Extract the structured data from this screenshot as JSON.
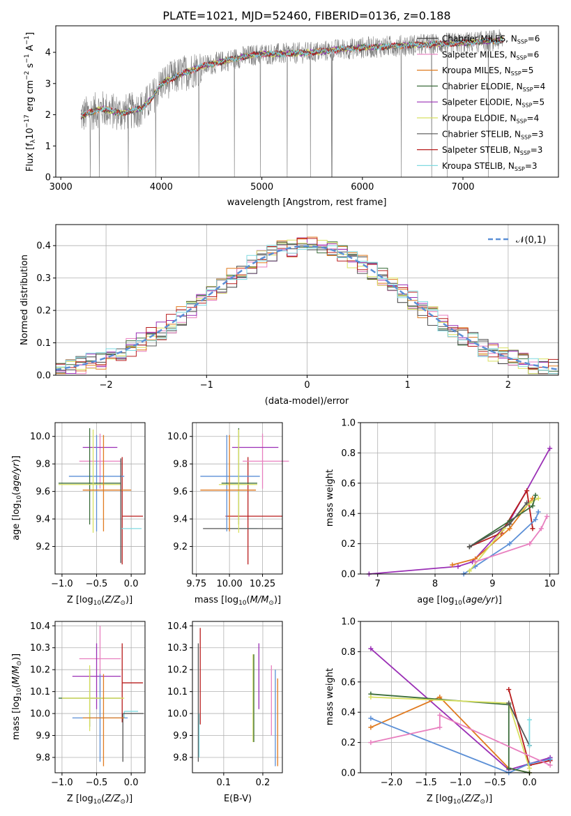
{
  "figure": {
    "title": "PLATE=1021, MJD=52460, FIBERID=0136, z=0.188"
  },
  "chart_data": [
    {
      "id": "spectrum",
      "type": "line",
      "xlabel": "wavelength [Angstrom, rest frame]",
      "ylabel": "Flux [f_λ 10^-17 erg cm^-2 s^-1 A^-1]",
      "xlim": [
        2950,
        7950
      ],
      "ylim": [
        0,
        4.85
      ],
      "xticks": [
        3000,
        4000,
        5000,
        6000,
        7000
      ],
      "yticks": [
        0,
        1,
        2,
        3,
        4
      ],
      "grid": false,
      "legend_position": "upper right",
      "data_x_range": [
        3200,
        7400
      ],
      "series": [
        {
          "name": "Chabrier MILES, N_SSP=6",
          "legend": {
            "pre": "Chabrier MILES, N",
            "sub": "SSP",
            "post": "=6"
          },
          "color": "#3e3e3e"
        },
        {
          "name": "Salpeter MILES, N_SSP=6",
          "legend": {
            "pre": "Salpeter MILES, N",
            "sub": "SSP",
            "post": "=6"
          },
          "color": "#e87fbf"
        },
        {
          "name": "Kroupa MILES, N_SSP=5",
          "legend": {
            "pre": "Kroupa MILES, N",
            "sub": "SSP",
            "post": "=5"
          },
          "color": "#e07a1f"
        },
        {
          "name": "Chabrier ELODIE, N_SSP=4",
          "legend": {
            "pre": "Chabrier ELODIE, N",
            "sub": "SSP",
            "post": "=4"
          },
          "color": "#3b6d3b"
        },
        {
          "name": "Salpeter ELODIE, N_SSP=5",
          "legend": {
            "pre": "Salpeter ELODIE, N",
            "sub": "SSP",
            "post": "=5"
          },
          "color": "#9a2fb5"
        },
        {
          "name": "Kroupa ELODIE, N_SSP=4",
          "legend": {
            "pre": "Kroupa ELODIE, N",
            "sub": "SSP",
            "post": "=4"
          },
          "color": "#d8e060"
        },
        {
          "name": "Chabrier STELIB, N_SSP=3",
          "legend": {
            "pre": "Chabrier STELIB, N",
            "sub": "SSP",
            "post": "=3"
          },
          "color": "#555555"
        },
        {
          "name": "Salpeter STELIB, N_SSP=3",
          "legend": {
            "pre": "Salpeter STELIB, N",
            "sub": "SSP",
            "post": "=3"
          },
          "color": "#b81c1c"
        },
        {
          "name": "Kroupa STELIB, N_SSP=3",
          "legend": {
            "pre": "Kroupa STELIB, N",
            "sub": "SSP",
            "post": "=3"
          },
          "color": "#7fd9e0"
        }
      ],
      "continuum_anchor_points": [
        [
          3200,
          1.95
        ],
        [
          3400,
          2.2
        ],
        [
          3600,
          2.05
        ],
        [
          3800,
          2.2
        ],
        [
          3900,
          2.5
        ],
        [
          4000,
          3.0
        ],
        [
          4200,
          3.3
        ],
        [
          4400,
          3.55
        ],
        [
          4600,
          3.7
        ],
        [
          4800,
          3.85
        ],
        [
          5000,
          3.95
        ],
        [
          5200,
          3.95
        ],
        [
          5500,
          4.0
        ],
        [
          5800,
          4.1
        ],
        [
          6000,
          4.15
        ],
        [
          6300,
          4.2
        ],
        [
          6600,
          4.25
        ],
        [
          7000,
          4.3
        ],
        [
          7400,
          4.4
        ]
      ]
    },
    {
      "id": "residuals",
      "type": "histogram",
      "xlabel": "(data-model)/error",
      "ylabel": "Normed distribution",
      "xlim": [
        -2.5,
        2.5
      ],
      "ylim": [
        0,
        0.465
      ],
      "xticks": [
        -2,
        -1,
        0,
        1,
        2
      ],
      "yticks": [
        0.0,
        0.1,
        0.2,
        0.3,
        0.4
      ],
      "grid": true,
      "bin_width": 0.1,
      "reference_curve": {
        "label": "𝒩(0,1)",
        "mean": 0,
        "sigma": 1,
        "color": "#5b8fd6",
        "style": "dashed"
      },
      "legend_position": "upper right"
    },
    {
      "id": "age_vs_Z",
      "type": "errorbar",
      "xlabel": "Z [log10(Z/Z⊙)]",
      "ylabel": "age [log10(age/yr)]",
      "xlim": [
        -1.1,
        0.2
      ],
      "ylim": [
        9.0,
        10.1
      ],
      "xticks": [
        -1.0,
        -0.5,
        0.0
      ],
      "yticks": [
        9.2,
        9.4,
        9.6,
        9.8,
        10.0
      ],
      "grid": true,
      "points": [
        {
          "color": "#b81c1c",
          "x": -0.13,
          "xerr": [
            0.0,
            0.3
          ],
          "y": 9.42,
          "yerr": [
            0.35,
            0.43
          ]
        },
        {
          "color": "#7fd9e0",
          "x": 0.0,
          "xerr": [
            0.15,
            0.15
          ],
          "y": 9.33,
          "yerr": [
            0.0,
            0.0
          ]
        },
        {
          "color": "#e87fbf",
          "x": -0.45,
          "xerr": [
            0.3,
            0.3
          ],
          "y": 9.82,
          "yerr": [
            0.2,
            0.2
          ]
        },
        {
          "color": "#9a2fb5",
          "x": -0.4,
          "xerr": [
            0.3,
            0.2
          ],
          "y": 9.92,
          "yerr": [
            0.0,
            0.0
          ]
        },
        {
          "color": "#5b8fd6",
          "x": -0.5,
          "xerr": [
            0.4,
            0.4
          ],
          "y": 9.71,
          "yerr": [
            0.4,
            0.3
          ]
        },
        {
          "color": "#3b6d3b",
          "x": -0.6,
          "xerr": [
            0.45,
            0.45
          ],
          "y": 9.66,
          "yerr": [
            0.3,
            0.4
          ]
        },
        {
          "color": "#d8e060",
          "x": -0.55,
          "xerr": [
            0.5,
            0.4
          ],
          "y": 9.65,
          "yerr": [
            0.35,
            0.4
          ]
        },
        {
          "color": "#e07a1f",
          "x": -0.4,
          "xerr": [
            0.3,
            0.4
          ],
          "y": 9.61,
          "yerr": [
            0.3,
            0.4
          ]
        },
        {
          "color": "#555555",
          "x": -0.15,
          "xerr": [
            0.0,
            0.0
          ],
          "y": 9.46,
          "yerr": [
            0.38,
            0.38
          ]
        }
      ]
    },
    {
      "id": "age_vs_mass",
      "type": "errorbar",
      "xlabel": "mass [log10(M/M⊙)]",
      "ylabel": "",
      "xlim": [
        9.72,
        10.4
      ],
      "ylim": [
        9.0,
        10.1
      ],
      "xticks": [
        9.75,
        10.0,
        10.25
      ],
      "yticks": [
        9.2,
        9.4,
        9.6,
        9.8,
        10.0
      ],
      "grid": true,
      "points": [
        {
          "color": "#b81c1c",
          "x": 10.14,
          "xerr": [
            0.17,
            0.26
          ],
          "y": 9.42,
          "yerr": [
            0.35,
            0.43
          ]
        },
        {
          "color": "#7fd9e0",
          "x": 10.01,
          "xerr": [
            0.03,
            0.2
          ],
          "y": 9.33,
          "yerr": [
            0.0,
            0.0
          ]
        },
        {
          "color": "#555555",
          "x": 10.0,
          "xerr": [
            0.2,
            0.4
          ],
          "y": 9.33,
          "yerr": [
            0.0,
            0.0
          ]
        },
        {
          "color": "#e87fbf",
          "x": 10.25,
          "xerr": [
            0.15,
            0.2
          ],
          "y": 9.82,
          "yerr": [
            0.2,
            0.2
          ]
        },
        {
          "color": "#9a2fb5",
          "x": 10.17,
          "xerr": [
            0.15,
            0.2
          ],
          "y": 9.92,
          "yerr": [
            0.0,
            0.0
          ]
        },
        {
          "color": "#5b8fd6",
          "x": 9.98,
          "xerr": [
            0.2,
            0.25
          ],
          "y": 9.71,
          "yerr": [
            0.4,
            0.3
          ]
        },
        {
          "color": "#3b6d3b",
          "x": 10.07,
          "xerr": [
            0.13,
            0.14
          ],
          "y": 9.66,
          "yerr": [
            0.3,
            0.4
          ]
        },
        {
          "color": "#d8e060",
          "x": 10.07,
          "xerr": [
            0.15,
            0.14
          ],
          "y": 9.65,
          "yerr": [
            0.35,
            0.4
          ]
        },
        {
          "color": "#e07a1f",
          "x": 10.0,
          "xerr": [
            0.22,
            0.2
          ],
          "y": 9.61,
          "yerr": [
            0.3,
            0.4
          ]
        }
      ]
    },
    {
      "id": "massweight_vs_age",
      "type": "line",
      "xlabel": "age [log10(age/yr)]",
      "ylabel": "mass weight",
      "xlim": [
        6.7,
        10.15
      ],
      "ylim": [
        0,
        1.0
      ],
      "xticks": [
        7,
        8,
        9,
        10
      ],
      "yticks": [
        0.0,
        0.2,
        0.4,
        0.6,
        0.8,
        1.0
      ],
      "grid": true,
      "series": [
        {
          "color": "#9a2fb5",
          "x": [
            6.85,
            8.4,
            8.65,
            9.3,
            10.0
          ],
          "y": [
            0.0,
            0.05,
            0.08,
            0.35,
            0.83
          ]
        },
        {
          "color": "#b81c1c",
          "x": [
            8.6,
            9.15,
            9.6,
            9.7
          ],
          "y": [
            0.18,
            0.27,
            0.55,
            0.3
          ]
        },
        {
          "color": "#e07a1f",
          "x": [
            8.3,
            8.7,
            9.3,
            9.7
          ],
          "y": [
            0.06,
            0.1,
            0.3,
            0.5
          ]
        },
        {
          "color": "#5b8fd6",
          "x": [
            8.5,
            8.7,
            9.3,
            9.75,
            9.8
          ],
          "y": [
            0.0,
            0.05,
            0.2,
            0.36,
            0.41
          ]
        },
        {
          "color": "#d8e060",
          "x": [
            8.6,
            9.2,
            9.65,
            9.8
          ],
          "y": [
            0.02,
            0.3,
            0.47,
            0.5
          ]
        },
        {
          "color": "#3b6d3b",
          "x": [
            8.6,
            9.3,
            9.7,
            9.75
          ],
          "y": [
            0.18,
            0.35,
            0.45,
            0.52
          ]
        },
        {
          "color": "#555555",
          "x": [
            8.6,
            9.3,
            9.6
          ],
          "y": [
            0.18,
            0.33,
            0.47
          ]
        },
        {
          "color": "#e87fbf",
          "x": [
            8.7,
            9.65,
            9.85,
            9.95
          ],
          "y": [
            0.08,
            0.2,
            0.3,
            0.38
          ]
        }
      ]
    },
    {
      "id": "mass_vs_Z",
      "type": "errorbar",
      "xlabel": "Z [log10(Z/Z⊙)]",
      "ylabel": "mass [log10(M/M⊙)]",
      "xlim": [
        -1.1,
        0.2
      ],
      "ylim": [
        9.73,
        10.42
      ],
      "xticks": [
        -1.0,
        -0.5,
        0.0
      ],
      "yticks": [
        9.8,
        9.9,
        10.0,
        10.1,
        10.2,
        10.3,
        10.4
      ],
      "grid": true,
      "points": [
        {
          "color": "#b81c1c",
          "x": -0.13,
          "xerr": [
            0.0,
            0.3
          ],
          "y": 10.14,
          "yerr": [
            0.18,
            0.18
          ]
        },
        {
          "color": "#7fd9e0",
          "x": -0.1,
          "xerr": [
            0.0,
            0.2
          ],
          "y": 10.01,
          "yerr": [
            0.03,
            0.0
          ]
        },
        {
          "color": "#555555",
          "x": -0.12,
          "xerr": [
            0.0,
            0.3
          ],
          "y": 10.0,
          "yerr": [
            0.22,
            0.0
          ]
        },
        {
          "color": "#e87fbf",
          "x": -0.45,
          "xerr": [
            0.3,
            0.3
          ],
          "y": 10.25,
          "yerr": [
            0.15,
            0.15
          ]
        },
        {
          "color": "#9a2fb5",
          "x": -0.5,
          "xerr": [
            0.35,
            0.35
          ],
          "y": 10.17,
          "yerr": [
            0.15,
            0.15
          ]
        },
        {
          "color": "#5b8fd6",
          "x": -0.45,
          "xerr": [
            0.4,
            0.4
          ],
          "y": 9.98,
          "yerr": [
            0.2,
            0.2
          ]
        },
        {
          "color": "#3b6d3b",
          "x": -0.6,
          "xerr": [
            0.45,
            0.45
          ],
          "y": 10.07,
          "yerr": [
            0.13,
            0.13
          ]
        },
        {
          "color": "#d8e060",
          "x": -0.6,
          "xerr": [
            0.4,
            0.5
          ],
          "y": 10.07,
          "yerr": [
            0.15,
            0.15
          ]
        },
        {
          "color": "#e07a1f",
          "x": -0.4,
          "xerr": [
            0.3,
            0.3
          ],
          "y": 9.98,
          "yerr": [
            0.22,
            0.2
          ]
        }
      ]
    },
    {
      "id": "mass_vs_EBV",
      "type": "errorbar",
      "xlabel": "E(B-V)",
      "ylabel": "",
      "xlim": [
        0.02,
        0.25
      ],
      "ylim": [
        9.73,
        10.42
      ],
      "xticks": [
        0.1,
        0.2
      ],
      "yticks": [
        9.8,
        9.9,
        10.0,
        10.1,
        10.2,
        10.3,
        10.4
      ],
      "grid": true,
      "points": [
        {
          "color": "#555555",
          "x": 0.035,
          "y": 10.05,
          "yerr": [
            0.27,
            0.27
          ]
        },
        {
          "color": "#b81c1c",
          "x": 0.04,
          "y": 10.17,
          "yerr": [
            0.22,
            0.22
          ]
        },
        {
          "color": "#7fd9e0",
          "x": 0.037,
          "y": 9.9,
          "yerr": [
            0.1,
            0.1
          ]
        },
        {
          "color": "#d8e060",
          "x": 0.175,
          "y": 10.07,
          "yerr": [
            0.2,
            0.2
          ]
        },
        {
          "color": "#3b6d3b",
          "x": 0.177,
          "y": 10.07,
          "yerr": [
            0.2,
            0.2
          ]
        },
        {
          "color": "#9a2fb5",
          "x": 0.19,
          "y": 10.17,
          "yerr": [
            0.15,
            0.15
          ]
        },
        {
          "color": "#e87fbf",
          "x": 0.222,
          "y": 10.06,
          "yerr": [
            0.16,
            0.16
          ]
        },
        {
          "color": "#5b8fd6",
          "x": 0.232,
          "y": 9.98,
          "yerr": [
            0.22,
            0.22
          ]
        },
        {
          "color": "#e07a1f",
          "x": 0.238,
          "y": 9.96,
          "yerr": [
            0.2,
            0.2
          ]
        }
      ]
    },
    {
      "id": "massweight_vs_Z",
      "type": "line",
      "xlabel": "Z [log10(Z/Z⊙)]",
      "ylabel": "mass weight",
      "xlim": [
        -2.45,
        0.42
      ],
      "ylim": [
        0,
        1.0
      ],
      "xticks": [
        -2.0,
        -1.5,
        -1.0,
        -0.5,
        0.0
      ],
      "yticks": [
        0.0,
        0.2,
        0.4,
        0.6,
        0.8,
        1.0
      ],
      "grid": true,
      "series": [
        {
          "color": "#9a2fb5",
          "x": [
            -2.3,
            -0.3,
            0.3
          ],
          "y": [
            0.82,
            0.02,
            0.1
          ]
        },
        {
          "color": "#b81c1c",
          "x": [
            -0.3,
            0.0,
            0.3
          ],
          "y": [
            0.55,
            0.05,
            0.08
          ]
        },
        {
          "color": "#e07a1f",
          "x": [
            -2.3,
            -1.3,
            -0.3,
            0.0
          ],
          "y": [
            0.3,
            0.5,
            0.03,
            0.0
          ]
        },
        {
          "color": "#5b8fd6",
          "x": [
            -2.3,
            -0.3,
            0.0,
            0.3
          ],
          "y": [
            0.36,
            0.0,
            0.06,
            0.09
          ]
        },
        {
          "color": "#3b6d3b",
          "x": [
            -2.3,
            -0.3,
            -0.3,
            0.0
          ],
          "y": [
            0.52,
            0.45,
            0.03,
            0.0
          ]
        },
        {
          "color": "#d8e060",
          "x": [
            -2.3,
            -0.3,
            0.0
          ],
          "y": [
            0.5,
            0.46,
            0.03
          ]
        },
        {
          "color": "#555555",
          "x": [
            -0.3,
            0.0
          ],
          "y": [
            0.46,
            0.18
          ]
        },
        {
          "color": "#e87fbf",
          "x": [
            -2.3,
            -1.3,
            -1.3,
            0.3
          ],
          "y": [
            0.2,
            0.3,
            0.38,
            0.05
          ]
        },
        {
          "color": "#7fd9e0",
          "x": [
            0.0,
            0.0
          ],
          "y": [
            0.35,
            0.18
          ]
        }
      ]
    }
  ]
}
